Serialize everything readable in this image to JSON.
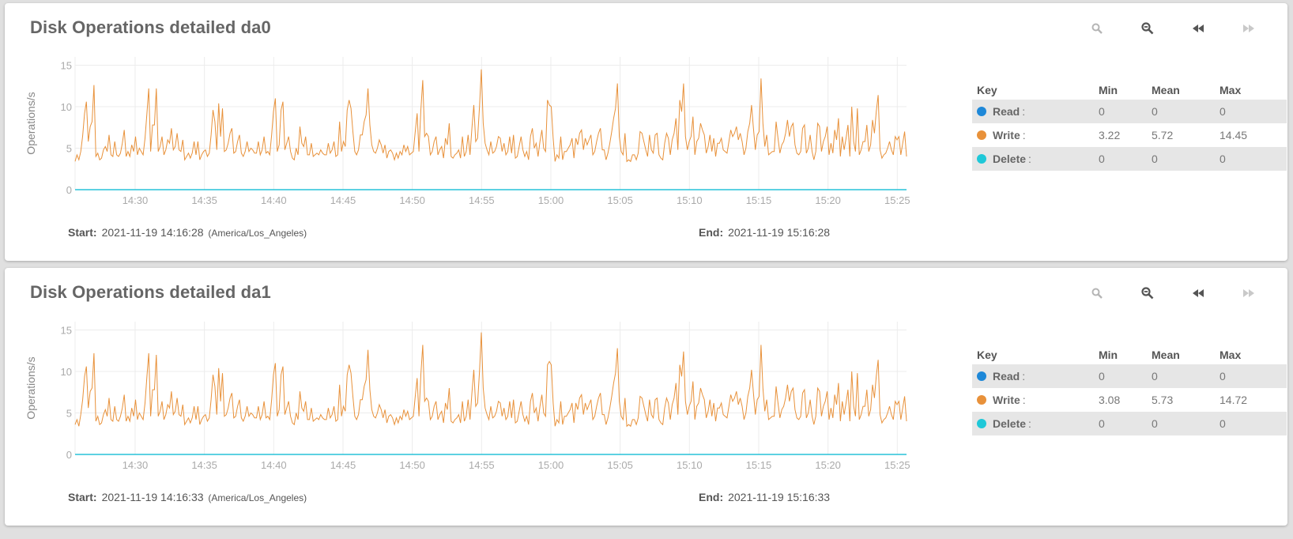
{
  "colors": {
    "read": "#1e88d8",
    "write": "#e8913a",
    "delete": "#1fc8d8",
    "grid": "#ececec",
    "axis_text": "#aaaaaa"
  },
  "toolbar_icons": [
    "zoom-in-icon",
    "zoom-out-icon",
    "rewind-icon",
    "fast-forward-icon"
  ],
  "legend_headers": {
    "key": "Key",
    "min": "Min",
    "mean": "Mean",
    "max": "Max"
  },
  "start_label": "Start:",
  "end_label": "End:",
  "panels": [
    {
      "title": "Disk Operations detailed da0",
      "start": "2021-11-19 14:16:28",
      "timezone": "(America/Los_Angeles)",
      "end": "2021-11-19 15:16:28",
      "legend": [
        {
          "name": "Read",
          "color": "#1e88d8",
          "min": "0",
          "mean": "0",
          "max": "0"
        },
        {
          "name": "Write",
          "color": "#e8913a",
          "min": "3.22",
          "mean": "5.72",
          "max": "14.45"
        },
        {
          "name": "Delete",
          "color": "#1fc8d8",
          "min": "0",
          "mean": "0",
          "max": "0"
        }
      ]
    },
    {
      "title": "Disk Operations detailed da1",
      "start": "2021-11-19 14:16:33",
      "timezone": "(America/Los_Angeles)",
      "end": "2021-11-19 15:16:33",
      "legend": [
        {
          "name": "Read",
          "color": "#1e88d8",
          "min": "0",
          "mean": "0",
          "max": "0"
        },
        {
          "name": "Write",
          "color": "#e8913a",
          "min": "3.08",
          "mean": "5.73",
          "max": "14.72"
        },
        {
          "name": "Delete",
          "color": "#1fc8d8",
          "min": "0",
          "mean": "0",
          "max": "0"
        }
      ]
    }
  ],
  "chart_data": [
    {
      "type": "line",
      "ylabel": "Operations/s",
      "ylim": [
        0,
        16
      ],
      "yticks": [
        0,
        5,
        10,
        15
      ],
      "xlim": [
        "14:25:40",
        "15:25:40"
      ],
      "xticks": [
        "14:30",
        "14:35",
        "14:40",
        "14:45",
        "14:50",
        "14:55",
        "15:00",
        "15:05",
        "15:10",
        "15:15",
        "15:20",
        "15:25"
      ],
      "grid": true,
      "series": [
        {
          "name": "Read",
          "values": [
            0,
            0
          ]
        },
        {
          "name": "Delete",
          "values": [
            0,
            0
          ]
        },
        {
          "name": "Write",
          "values": [
            3.4,
            4.2,
            3.6,
            4.6,
            6.5,
            9.2,
            10.6,
            5.8,
            7.6,
            8.2,
            12.6,
            4.0,
            4.4,
            3.6,
            3.8,
            4.8,
            5.2,
            4.6,
            6.6,
            4.2,
            4.0,
            5.8,
            4.2,
            4.0,
            4.4,
            5.6,
            7.2,
            4.0,
            4.6,
            4.0,
            5.4,
            4.6,
            6.4,
            4.2,
            5.0,
            4.6,
            4.2,
            6.2,
            9.2,
            12.2,
            4.6,
            7.8,
            7.8,
            12.2,
            4.6,
            5.2,
            6.4,
            4.2,
            4.8,
            6.0,
            5.6,
            7.4,
            4.8,
            5.2,
            6.8,
            4.8,
            4.6,
            6.0,
            3.6,
            4.0,
            4.4,
            3.8,
            4.4,
            5.8,
            4.2,
            5.8,
            3.6,
            4.2,
            4.6,
            4.8,
            4.0,
            4.4,
            6.6,
            9.6,
            8.2,
            4.8,
            10.4,
            6.4,
            9.8,
            4.6,
            4.8,
            5.6,
            6.8,
            7.4,
            4.4,
            4.6,
            5.8,
            6.6,
            4.4,
            4.0,
            4.6,
            5.8,
            4.6,
            5.0,
            4.8,
            4.4,
            4.4,
            5.8,
            4.2,
            4.8,
            6.4,
            4.4,
            4.6,
            4.2,
            6.6,
            9.4,
            11.0,
            4.6,
            5.4,
            9.6,
            10.6,
            4.8,
            5.6,
            6.4,
            4.6,
            3.8,
            3.6,
            5.0,
            4.2,
            7.6,
            5.6,
            5.2,
            6.4,
            4.2,
            4.2,
            5.6,
            4.0,
            4.2,
            4.4,
            4.2,
            4.8,
            4.4,
            4.2,
            4.2,
            5.6,
            4.4,
            4.8,
            5.8,
            4.0,
            4.2,
            8.2,
            4.6,
            5.8,
            5.2,
            9.6,
            10.8,
            9.8,
            7.0,
            4.6,
            4.2,
            4.8,
            6.6,
            6.6,
            8.2,
            9.0,
            12.2,
            7.8,
            5.4,
            4.6,
            4.4,
            5.0,
            6.0,
            5.4,
            4.4,
            5.4,
            3.8,
            4.6,
            4.8,
            4.4,
            3.6,
            4.4,
            3.8,
            4.6,
            4.2,
            5.4,
            4.6,
            5.2,
            4.2,
            4.4,
            4.6,
            7.0,
            9.2,
            4.6,
            9.6,
            13.2,
            6.4,
            6.8,
            6.4,
            4.2,
            4.6,
            5.8,
            6.4,
            4.2,
            4.8,
            5.2,
            3.8,
            6.2,
            5.4,
            8.0,
            4.0,
            3.8,
            4.2,
            4.4,
            4.8,
            3.8,
            6.4,
            4.0,
            4.6,
            6.6,
            4.2,
            7.4,
            10.2,
            5.8,
            6.2,
            10.0,
            14.5,
            8.0,
            5.6,
            4.8,
            4.2,
            5.8,
            4.4,
            4.6,
            5.2,
            6.4,
            6.2,
            4.6,
            5.6,
            4.2,
            4.6,
            6.4,
            4.4,
            6.6,
            3.8,
            4.0,
            5.2,
            6.4,
            4.8,
            4.0,
            4.6,
            3.6,
            6.4,
            7.4,
            5.0,
            5.6,
            4.0,
            5.8,
            7.2,
            5.0,
            4.6,
            10.8,
            10.2,
            10.0,
            6.2,
            3.4,
            4.2,
            3.8,
            6.4,
            3.6,
            4.6,
            4.6,
            5.0,
            5.4,
            6.2,
            3.8,
            6.2,
            5.4,
            6.8,
            7.2,
            4.8,
            6.2,
            5.4,
            6.0,
            6.6,
            4.2,
            4.6,
            5.8,
            6.8,
            7.4,
            4.8,
            4.8,
            3.6,
            4.4,
            5.6,
            7.0,
            8.6,
            9.8,
            12.8,
            6.4,
            4.6,
            4.2,
            6.8,
            3.4,
            3.6,
            3.4,
            4.2,
            4.2,
            3.6,
            4.4,
            7.0,
            6.8,
            5.8,
            4.8,
            4.0,
            6.6,
            4.8,
            4.4,
            6.6,
            6.8,
            4.2,
            3.8,
            3.6,
            5.6,
            6.8,
            6.2,
            4.2,
            6.0,
            6.8,
            8.6,
            4.8,
            10.8,
            9.4,
            12.8,
            6.4,
            4.8,
            5.8,
            6.4,
            8.8,
            4.2,
            5.8,
            6.2,
            8.0,
            7.2,
            6.6,
            4.4,
            5.2,
            6.6,
            4.6,
            6.2,
            4.0,
            5.6,
            5.6,
            6.2,
            4.8,
            4.6,
            4.4,
            5.8,
            7.2,
            6.4,
            6.8,
            7.6,
            6.0,
            6.8,
            5.8,
            4.2,
            5.0,
            7.0,
            8.0,
            10.2,
            7.4,
            4.8,
            6.6,
            7.0,
            13.4,
            8.0,
            5.2,
            6.6,
            4.2,
            4.4,
            4.6,
            4.6,
            8.2,
            6.2,
            4.4,
            5.4,
            5.8,
            6.8,
            8.4,
            6.4,
            7.6,
            8.0,
            5.4,
            4.4,
            4.2,
            4.6,
            7.4,
            7.8,
            4.4,
            5.0,
            6.6,
            4.6,
            3.6,
            4.6,
            8.0,
            7.6,
            4.6,
            5.8,
            6.4,
            7.6,
            4.2,
            5.6,
            4.4,
            7.2,
            6.0,
            8.6,
            4.0,
            6.4,
            4.8,
            6.2,
            7.8,
            4.0,
            10.0,
            5.8,
            4.6,
            9.8,
            4.2,
            4.8,
            5.8,
            5.8,
            7.8,
            4.6,
            5.4,
            8.4,
            6.8,
            9.4,
            11.4,
            4.8,
            3.8,
            4.2,
            4.4,
            5.0,
            5.8,
            4.8,
            4.2,
            6.4,
            6.0,
            6.4,
            4.2,
            5.6,
            7.0,
            4.0
          ]
        }
      ]
    },
    {
      "type": "line",
      "ylabel": "Operations/s",
      "ylim": [
        0,
        16
      ],
      "yticks": [
        0,
        5,
        10,
        15
      ],
      "xlim": [
        "14:25:40",
        "15:25:40"
      ],
      "xticks": [
        "14:30",
        "14:35",
        "14:40",
        "14:45",
        "14:50",
        "14:55",
        "15:00",
        "15:05",
        "15:10",
        "15:15",
        "15:20",
        "15:25"
      ],
      "grid": true,
      "series": [
        {
          "name": "Read",
          "values": [
            0,
            0
          ]
        },
        {
          "name": "Delete",
          "values": [
            0,
            0
          ]
        },
        {
          "name": "Write",
          "values": [
            3.6,
            4.2,
            3.4,
            4.8,
            6.6,
            9.4,
            10.6,
            5.6,
            7.6,
            8.0,
            12.2,
            4.0,
            4.6,
            3.6,
            3.8,
            4.8,
            5.4,
            4.6,
            6.8,
            4.2,
            4.0,
            5.8,
            4.2,
            4.0,
            4.6,
            5.6,
            7.2,
            4.0,
            4.6,
            4.0,
            5.6,
            4.6,
            6.6,
            4.2,
            5.0,
            4.6,
            4.2,
            6.2,
            9.4,
            12.2,
            4.6,
            7.8,
            7.8,
            12.0,
            4.6,
            5.2,
            6.4,
            4.2,
            4.8,
            6.0,
            5.6,
            7.6,
            4.8,
            5.2,
            6.8,
            4.8,
            4.6,
            6.0,
            3.6,
            4.0,
            4.4,
            3.8,
            4.4,
            5.8,
            4.2,
            5.8,
            3.6,
            4.2,
            4.6,
            4.8,
            4.0,
            4.4,
            6.6,
            9.6,
            8.2,
            4.8,
            10.4,
            6.4,
            9.8,
            4.6,
            4.8,
            5.6,
            6.8,
            7.4,
            4.4,
            4.6,
            5.8,
            6.6,
            4.4,
            4.0,
            4.6,
            5.8,
            4.6,
            5.0,
            4.8,
            4.4,
            4.4,
            5.8,
            4.2,
            4.8,
            6.4,
            4.4,
            4.6,
            4.2,
            6.6,
            9.6,
            11.0,
            4.6,
            5.4,
            9.6,
            10.6,
            4.8,
            5.6,
            6.4,
            4.6,
            3.8,
            3.6,
            5.0,
            4.2,
            7.6,
            5.6,
            5.2,
            6.4,
            4.2,
            4.2,
            5.6,
            4.0,
            4.2,
            4.4,
            4.2,
            4.8,
            4.4,
            4.2,
            4.2,
            5.6,
            4.4,
            4.8,
            5.8,
            4.0,
            4.2,
            8.4,
            4.6,
            5.8,
            5.2,
            9.6,
            10.8,
            9.8,
            7.0,
            4.6,
            4.2,
            4.8,
            6.6,
            6.6,
            8.2,
            9.0,
            12.6,
            7.8,
            5.4,
            4.6,
            4.4,
            5.0,
            6.0,
            5.4,
            4.4,
            5.4,
            3.8,
            4.6,
            4.8,
            4.4,
            3.6,
            4.4,
            3.8,
            4.6,
            4.2,
            5.4,
            4.6,
            5.2,
            4.2,
            4.4,
            4.6,
            7.0,
            9.2,
            4.6,
            9.6,
            13.2,
            6.4,
            6.8,
            6.4,
            4.2,
            4.6,
            5.8,
            6.4,
            4.2,
            4.8,
            5.2,
            3.8,
            6.2,
            5.4,
            8.0,
            4.0,
            3.8,
            4.2,
            4.4,
            4.8,
            3.8,
            6.4,
            4.0,
            4.6,
            6.6,
            4.2,
            7.4,
            10.2,
            5.8,
            6.2,
            10.0,
            14.7,
            8.0,
            5.6,
            4.8,
            4.2,
            5.8,
            4.4,
            4.6,
            5.2,
            6.4,
            6.2,
            4.6,
            5.6,
            4.2,
            4.6,
            6.4,
            4.4,
            6.6,
            3.8,
            4.0,
            5.2,
            6.4,
            4.8,
            4.0,
            4.6,
            3.6,
            6.4,
            7.4,
            5.0,
            5.6,
            4.0,
            5.8,
            7.2,
            5.0,
            4.6,
            10.8,
            11.2,
            10.8,
            6.2,
            3.4,
            4.2,
            3.8,
            6.4,
            3.6,
            4.6,
            4.6,
            5.0,
            5.4,
            6.2,
            3.8,
            6.2,
            5.4,
            6.8,
            7.2,
            4.8,
            6.2,
            5.4,
            6.0,
            6.6,
            4.2,
            4.6,
            5.8,
            6.8,
            7.4,
            4.8,
            4.8,
            3.6,
            4.4,
            5.6,
            7.0,
            8.6,
            9.8,
            12.8,
            6.4,
            4.6,
            4.2,
            6.8,
            3.4,
            3.6,
            3.4,
            4.2,
            4.2,
            3.6,
            4.4,
            7.0,
            6.8,
            5.8,
            4.8,
            4.0,
            6.6,
            4.8,
            4.4,
            6.6,
            6.8,
            4.2,
            3.8,
            3.6,
            5.6,
            6.8,
            6.2,
            4.2,
            6.0,
            6.8,
            8.6,
            4.8,
            10.8,
            9.4,
            12.4,
            6.4,
            4.8,
            5.8,
            6.4,
            8.8,
            4.2,
            5.8,
            6.2,
            8.0,
            7.2,
            6.6,
            4.4,
            5.2,
            6.6,
            4.6,
            6.2,
            4.0,
            5.6,
            5.6,
            6.2,
            4.8,
            4.6,
            4.4,
            5.8,
            7.2,
            6.4,
            6.8,
            7.6,
            6.0,
            6.8,
            5.8,
            4.2,
            5.0,
            7.0,
            8.0,
            10.2,
            7.4,
            4.8,
            6.6,
            7.0,
            13.2,
            8.0,
            5.2,
            6.6,
            4.2,
            4.4,
            4.6,
            4.6,
            8.2,
            6.2,
            4.4,
            5.4,
            5.8,
            6.8,
            8.4,
            6.4,
            7.6,
            8.0,
            5.4,
            4.4,
            4.2,
            4.6,
            7.4,
            7.8,
            4.4,
            5.0,
            6.6,
            4.6,
            3.6,
            4.6,
            8.0,
            7.6,
            4.6,
            5.8,
            6.4,
            7.6,
            4.2,
            5.6,
            4.4,
            7.2,
            6.0,
            8.6,
            4.0,
            6.4,
            4.8,
            6.2,
            7.8,
            4.0,
            10.0,
            5.8,
            4.6,
            9.8,
            4.2,
            4.8,
            5.8,
            5.8,
            7.8,
            4.6,
            5.4,
            8.4,
            6.8,
            9.4,
            11.4,
            4.8,
            3.8,
            4.2,
            4.4,
            5.0,
            5.8,
            4.8,
            4.2,
            6.4,
            6.0,
            6.4,
            4.2,
            5.6,
            7.0,
            4.0
          ]
        }
      ]
    }
  ]
}
